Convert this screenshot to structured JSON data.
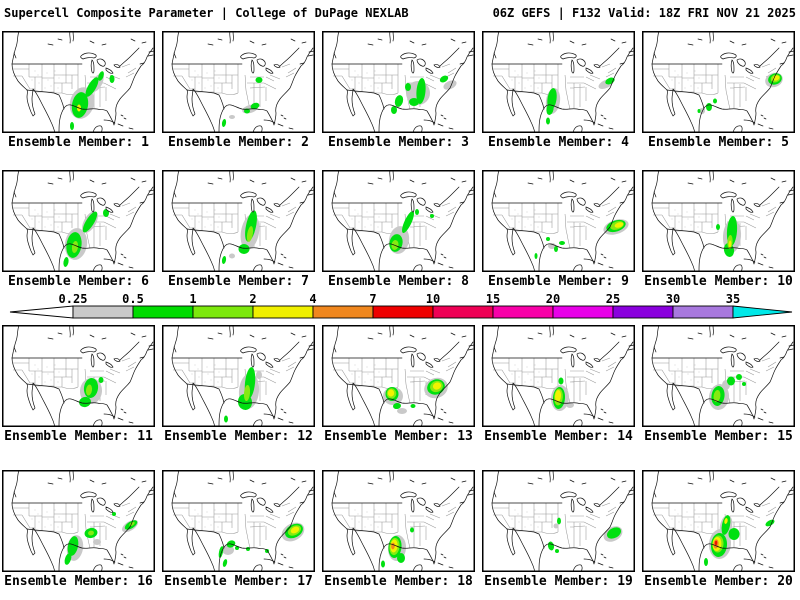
{
  "header": {
    "left": "Supercell Composite Parameter | College of DuPage NEXLAB",
    "right": "06Z GEFS | F132 Valid: 18Z FRI NOV 21 2025"
  },
  "colorbar": {
    "tick_labels": [
      "0.25",
      "0.5",
      "1",
      "2",
      "4",
      "7",
      "10",
      "15",
      "20",
      "25",
      "30",
      "35"
    ],
    "segment_colors": [
      "#c9c9c9",
      "#00dc00",
      "#7ce80c",
      "#f0f000",
      "#f0871e",
      "#ee0000",
      "#ee0055",
      "#f800a8",
      "#e800e8",
      "#8a00dd",
      "#a878de"
    ],
    "left_arrow_color": "#ffffff",
    "right_arrow_color": "#00e8e8",
    "outline_color": "#000000"
  },
  "map_colors": {
    "background": "#ffffff",
    "coast": "#101010",
    "states": "#999999",
    "stipple": "#c4c4c4",
    "frame": "#000000"
  },
  "blob_colors": {
    "gray": "#c9c9c9",
    "green": "#00e010",
    "ygreen": "#86ea12",
    "yellow": "#f2f200",
    "orange": "#f0871e",
    "red": "#ee1000"
  },
  "members": [
    {
      "id": "1",
      "label": "Ensemble Member: 1",
      "blobs": [
        [
          80,
          72,
          12,
          16,
          15,
          "gray"
        ],
        [
          95,
          52,
          5,
          10,
          30,
          "gray"
        ],
        [
          78,
          74,
          8,
          13,
          10,
          "green"
        ],
        [
          90,
          56,
          4,
          11,
          30,
          "green"
        ],
        [
          99,
          45,
          2.5,
          5,
          20,
          "green"
        ],
        [
          110,
          48,
          2.5,
          4,
          0,
          "green"
        ],
        [
          70,
          95,
          2,
          4,
          0,
          "green"
        ],
        [
          77,
          77,
          2,
          3.5,
          0,
          "yellow"
        ]
      ]
    },
    {
      "id": "2",
      "label": "Ensemble Member: 2",
      "blobs": [
        [
          88,
          78,
          8,
          4,
          -15,
          "gray"
        ],
        [
          70,
          86,
          3,
          2,
          0,
          "gray"
        ],
        [
          97,
          49,
          3.5,
          3,
          0,
          "green"
        ],
        [
          93,
          75,
          4.5,
          3,
          -20,
          "green"
        ],
        [
          85,
          80,
          3,
          2.5,
          0,
          "green"
        ],
        [
          62,
          92,
          2,
          4,
          10,
          "green"
        ]
      ]
    },
    {
      "id": "3",
      "label": "Ensemble Member: 3",
      "blobs": [
        [
          96,
          62,
          12,
          12,
          0,
          "gray"
        ],
        [
          128,
          54,
          7,
          4,
          -25,
          "gray"
        ],
        [
          99,
          60,
          4.5,
          13,
          5,
          "green"
        ],
        [
          92,
          71,
          5,
          4,
          0,
          "green"
        ],
        [
          77,
          70,
          4,
          6,
          15,
          "green"
        ],
        [
          72,
          79,
          3,
          4,
          0,
          "green"
        ],
        [
          122,
          48,
          4.5,
          3,
          -30,
          "green"
        ],
        [
          86,
          56,
          3,
          4,
          0,
          "green"
        ]
      ]
    },
    {
      "id": "4",
      "label": "Ensemble Member: 4",
      "blobs": [
        [
          71,
          70,
          7,
          13,
          8,
          "gray"
        ],
        [
          124,
          53,
          8,
          4,
          -25,
          "gray"
        ],
        [
          70,
          68,
          4.5,
          11,
          8,
          "green"
        ],
        [
          68,
          78,
          3.5,
          6,
          10,
          "green"
        ],
        [
          128,
          50,
          5,
          3,
          -25,
          "green"
        ],
        [
          66,
          90,
          2,
          3.5,
          0,
          "green"
        ]
      ]
    },
    {
      "id": "5",
      "label": "Ensemble Member: 5",
      "blobs": [
        [
          132,
          49,
          9,
          7,
          -20,
          "gray"
        ],
        [
          60,
          80,
          3,
          3,
          0,
          "gray"
        ],
        [
          133,
          48,
          7,
          5.5,
          -20,
          "green"
        ],
        [
          133.5,
          47.5,
          5,
          3.8,
          -20,
          "ygreen"
        ],
        [
          134,
          47,
          3.5,
          2.5,
          -20,
          "yellow"
        ],
        [
          67,
          76,
          3,
          4,
          0,
          "green"
        ],
        [
          73,
          70,
          2,
          2.5,
          0,
          "green"
        ],
        [
          57,
          80,
          1.5,
          2,
          0,
          "green"
        ]
      ]
    },
    {
      "id": "6",
      "label": "Ensemble Member: 6",
      "blobs": [
        [
          74,
          74,
          11,
          16,
          8,
          "gray"
        ],
        [
          88,
          52,
          6,
          12,
          30,
          "gray"
        ],
        [
          72,
          75,
          7.5,
          13,
          8,
          "green"
        ],
        [
          88,
          52,
          4,
          12,
          32,
          "green"
        ],
        [
          104,
          43,
          3,
          4,
          0,
          "green"
        ],
        [
          73,
          77,
          3,
          6,
          8,
          "ygreen"
        ],
        [
          64,
          92,
          2.5,
          5,
          10,
          "green"
        ]
      ]
    },
    {
      "id": "7",
      "label": "Ensemble Member: 7",
      "blobs": [
        [
          88,
          62,
          9,
          18,
          10,
          "gray"
        ],
        [
          70,
          86,
          3,
          2.5,
          0,
          "gray"
        ],
        [
          89,
          56,
          5,
          16,
          12,
          "green"
        ],
        [
          88,
          64,
          2.8,
          8,
          10,
          "ygreen"
        ],
        [
          82,
          79,
          5.5,
          5,
          0,
          "green"
        ],
        [
          62,
          90,
          2,
          4,
          10,
          "green"
        ]
      ]
    },
    {
      "id": "8",
      "label": "Ensemble Member: 8",
      "blobs": [
        [
          77,
          70,
          10,
          14,
          10,
          "gray"
        ],
        [
          74,
          73,
          6.5,
          9,
          12,
          "green"
        ],
        [
          73,
          75,
          3.5,
          5,
          10,
          "ygreen"
        ],
        [
          86,
          52,
          3.5,
          12,
          25,
          "green"
        ],
        [
          95,
          42,
          2,
          3,
          0,
          "green"
        ],
        [
          110,
          46,
          2,
          2,
          0,
          "green"
        ]
      ]
    },
    {
      "id": "9",
      "label": "Ensemble Member: 9",
      "blobs": [
        [
          134,
          57,
          13,
          7,
          -18,
          "gray"
        ],
        [
          70,
          76,
          4,
          3,
          0,
          "gray"
        ],
        [
          134,
          56,
          10,
          5.5,
          -18,
          "green"
        ],
        [
          135,
          55.5,
          7,
          4,
          -18,
          "ygreen"
        ],
        [
          137,
          55,
          4.5,
          2.5,
          -18,
          "yellow"
        ],
        [
          80,
          73,
          3,
          2,
          0,
          "green"
        ],
        [
          74,
          79,
          2,
          3,
          0,
          "green"
        ],
        [
          66,
          69,
          2,
          2,
          0,
          "green"
        ],
        [
          54,
          86,
          1.5,
          3,
          0,
          "green"
        ]
      ]
    },
    {
      "id": "10",
      "label": "Ensemble Member: 10",
      "blobs": [
        [
          90,
          66,
          9,
          17,
          4,
          "gray"
        ],
        [
          90,
          61,
          5,
          15,
          4,
          "green"
        ],
        [
          87,
          80,
          5,
          7,
          -10,
          "green"
        ],
        [
          88,
          72,
          2.6,
          7,
          4,
          "ygreen"
        ],
        [
          88,
          74,
          1.4,
          3.5,
          4,
          "yellow"
        ],
        [
          76,
          57,
          2,
          3,
          0,
          "green"
        ]
      ]
    },
    {
      "id": "11",
      "label": "Ensemble Member: 11",
      "blobs": [
        [
          89,
          66,
          11,
          13,
          5,
          "gray"
        ],
        [
          89,
          63,
          7,
          10,
          8,
          "green"
        ],
        [
          83,
          77,
          6,
          5,
          -15,
          "green"
        ],
        [
          87,
          65,
          3,
          5.5,
          8,
          "ygreen"
        ],
        [
          99,
          55,
          2.5,
          3,
          0,
          "green"
        ]
      ]
    },
    {
      "id": "12",
      "label": "Ensemble Member: 12",
      "blobs": [
        [
          87,
          66,
          10,
          18,
          5,
          "gray"
        ],
        [
          97,
          50,
          3,
          4,
          0,
          "gray"
        ],
        [
          88,
          58,
          5,
          16,
          6,
          "green"
        ],
        [
          83,
          77,
          7,
          8,
          -10,
          "green"
        ],
        [
          85,
          68,
          3,
          8,
          5,
          "ygreen"
        ],
        [
          64,
          94,
          2,
          3.5,
          0,
          "green"
        ]
      ]
    },
    {
      "id": "13",
      "label": "Ensemble Member: 13",
      "blobs": [
        [
          71,
          71,
          10,
          9,
          0,
          "gray"
        ],
        [
          114,
          63,
          12,
          10,
          -20,
          "gray"
        ],
        [
          80,
          86,
          5,
          3,
          0,
          "gray"
        ],
        [
          70,
          69,
          6.5,
          7,
          0,
          "green"
        ],
        [
          69.5,
          68.5,
          4.8,
          5.2,
          0,
          "ygreen"
        ],
        [
          69,
          68,
          3.2,
          3.6,
          0,
          "yellow"
        ],
        [
          75,
          81,
          4,
          3,
          -10,
          "green"
        ],
        [
          114,
          62,
          9,
          7.5,
          -20,
          "green"
        ],
        [
          114.5,
          61.5,
          6.5,
          5.5,
          -20,
          "ygreen"
        ],
        [
          115,
          61,
          4.2,
          3.5,
          -20,
          "yellow"
        ],
        [
          91,
          81,
          2.5,
          2,
          0,
          "green"
        ]
      ]
    },
    {
      "id": "14",
      "label": "Ensemble Member: 14",
      "blobs": [
        [
          78,
          73,
          9,
          13,
          4,
          "gray"
        ],
        [
          88,
          80,
          4,
          3,
          0,
          "gray"
        ],
        [
          77,
          73,
          6,
          11,
          4,
          "green"
        ],
        [
          76.5,
          72,
          4.4,
          8.4,
          4,
          "ygreen"
        ],
        [
          76,
          71,
          3,
          6,
          4,
          "yellow"
        ],
        [
          79,
          56,
          2.5,
          3.5,
          0,
          "green"
        ]
      ]
    },
    {
      "id": "15",
      "label": "Ensemble Member: 15",
      "blobs": [
        [
          77,
          72,
          10,
          13,
          8,
          "gray"
        ],
        [
          84,
          60,
          4,
          5,
          0,
          "gray"
        ],
        [
          76,
          71,
          6.5,
          10,
          8,
          "green"
        ],
        [
          75,
          71,
          3.4,
          6,
          8,
          "ygreen"
        ],
        [
          89,
          56,
          4,
          4.5,
          0,
          "green"
        ],
        [
          97,
          52,
          3,
          3,
          0,
          "green"
        ],
        [
          102,
          59,
          2,
          2,
          0,
          "green"
        ]
      ]
    },
    {
      "id": "16",
      "label": "Ensemble Member: 16",
      "blobs": [
        [
          73,
          78,
          8,
          13,
          10,
          "gray"
        ],
        [
          128,
          56,
          9,
          4.5,
          -32,
          "gray"
        ],
        [
          95,
          72,
          4,
          3,
          0,
          "gray"
        ],
        [
          71,
          76,
          5,
          10,
          12,
          "green"
        ],
        [
          66,
          89,
          3,
          6,
          18,
          "green"
        ],
        [
          89,
          63,
          6.5,
          5,
          -12,
          "green"
        ],
        [
          89,
          63,
          3,
          2.4,
          -12,
          "ygreen"
        ],
        [
          129,
          55,
          7,
          3.4,
          -32,
          "green"
        ],
        [
          130,
          54,
          3,
          1.6,
          -32,
          "ygreen"
        ],
        [
          112,
          44,
          2,
          2,
          0,
          "green"
        ]
      ]
    },
    {
      "id": "17",
      "label": "Ensemble Member: 17",
      "blobs": [
        [
          131,
          62,
          12,
          8.5,
          -28,
          "gray"
        ],
        [
          66,
          80,
          6,
          5,
          0,
          "gray"
        ],
        [
          69,
          74,
          4.5,
          3.4,
          -25,
          "green"
        ],
        [
          75,
          78,
          2,
          2,
          0,
          "green"
        ],
        [
          59,
          82,
          2,
          6,
          12,
          "green"
        ],
        [
          63,
          93,
          2,
          4,
          15,
          "green"
        ],
        [
          86,
          79,
          2,
          2,
          0,
          "green"
        ],
        [
          105,
          81,
          2,
          2,
          0,
          "green"
        ],
        [
          132,
          61,
          9.5,
          6.5,
          -28,
          "green"
        ],
        [
          132.5,
          60.5,
          7,
          4.6,
          -28,
          "ygreen"
        ],
        [
          133,
          60,
          4.5,
          3,
          -28,
          "yellow"
        ]
      ]
    },
    {
      "id": "18",
      "label": "Ensemble Member: 18",
      "blobs": [
        [
          75,
          78,
          9,
          13,
          5,
          "gray"
        ],
        [
          73,
          77,
          6.5,
          11,
          6,
          "green"
        ],
        [
          72.5,
          76.5,
          5,
          8.6,
          6,
          "ygreen"
        ],
        [
          72,
          76,
          3.6,
          6.5,
          6,
          "yellow"
        ],
        [
          71,
          76,
          1.8,
          3.4,
          6,
          "orange"
        ],
        [
          79,
          88,
          4,
          5,
          0,
          "green"
        ],
        [
          61,
          94,
          2,
          3.5,
          0,
          "green"
        ],
        [
          90,
          60,
          2,
          2.5,
          0,
          "green"
        ]
      ]
    },
    {
      "id": "19",
      "label": "Ensemble Member: 19",
      "blobs": [
        [
          131,
          64,
          10,
          7,
          -28,
          "gray"
        ],
        [
          74,
          56,
          2.5,
          2.5,
          0,
          "gray"
        ],
        [
          77,
          51,
          2,
          3.4,
          0,
          "green"
        ],
        [
          69,
          76,
          3,
          4.5,
          -12,
          "green"
        ],
        [
          75,
          81,
          2,
          2,
          0,
          "green"
        ],
        [
          132,
          63,
          7.5,
          5,
          -28,
          "green"
        ]
      ]
    },
    {
      "id": "20",
      "label": "Ensemble Member: 20",
      "blobs": [
        [
          78,
          74,
          11,
          15,
          5,
          "gray"
        ],
        [
          84,
          56,
          6,
          11,
          12,
          "gray"
        ],
        [
          77,
          75,
          8,
          12,
          5,
          "green"
        ],
        [
          76,
          74,
          5.5,
          8.5,
          5,
          "ygreen"
        ],
        [
          75,
          74,
          4.4,
          7,
          5,
          "yellow"
        ],
        [
          74,
          74,
          2.6,
          4.6,
          5,
          "orange"
        ],
        [
          74,
          73,
          1.2,
          2.2,
          5,
          "red"
        ],
        [
          84,
          55,
          4,
          10,
          12,
          "green"
        ],
        [
          84,
          51,
          1.6,
          3,
          12,
          "yellow"
        ],
        [
          92,
          64,
          5.5,
          6,
          0,
          "green"
        ],
        [
          128,
          53,
          5,
          2.6,
          -30,
          "green"
        ],
        [
          64,
          92,
          2,
          4,
          0,
          "green"
        ]
      ]
    }
  ]
}
